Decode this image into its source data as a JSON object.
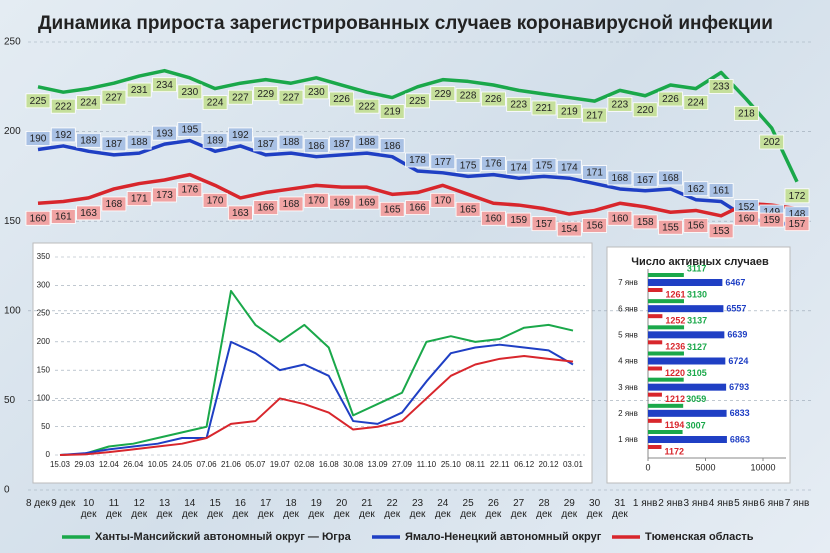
{
  "chart_data": [
    {
      "type": "line",
      "title": "Динамика прироста зарегистрированных случаев коронавирусной инфекции",
      "categories": [
        "8 дек",
        "9 дек",
        "10 дек",
        "11 дек",
        "12 дек",
        "13 дек",
        "14 дек",
        "15 дек",
        "16 дек",
        "17 дек",
        "18 дек",
        "19 дек",
        "20 дек",
        "21 дек",
        "22 дек",
        "23 дек",
        "24 дек",
        "25 дек",
        "26 дек",
        "27 дек",
        "28 дек",
        "29 дек",
        "30 дек",
        "31 дек",
        "1 янв",
        "2 янв",
        "3 янв",
        "4 янв",
        "5 янв",
        "6 янв",
        "7 янв"
      ],
      "series": [
        {
          "name": "Ханты-Мансийский автономный округ — Югра",
          "color": "#1aa84a",
          "label_color": "#c5df9b",
          "values": [
            225,
            222,
            224,
            227,
            231,
            234,
            230,
            224,
            227,
            229,
            227,
            230,
            226,
            222,
            219,
            225,
            229,
            228,
            226,
            223,
            221,
            219,
            217,
            223,
            220,
            226,
            224,
            233,
            218,
            202,
            172
          ]
        },
        {
          "name": "Ямало-Ненецкий автономный округ",
          "color": "#1f3fc4",
          "label_color": "#a9c1e4",
          "values": [
            190,
            192,
            189,
            187,
            188,
            193,
            195,
            189,
            192,
            187,
            188,
            186,
            187,
            188,
            186,
            178,
            177,
            175,
            176,
            174,
            175,
            174,
            171,
            168,
            167,
            168,
            162,
            161,
            152,
            149,
            148
          ]
        },
        {
          "name": "Тюменская область",
          "color": "#d8262c",
          "label_color": "#f0a3a3",
          "values": [
            160,
            161,
            163,
            168,
            171,
            173,
            176,
            170,
            163,
            166,
            168,
            170,
            169,
            169,
            165,
            166,
            170,
            165,
            160,
            159,
            157,
            154,
            156,
            160,
            158,
            155,
            156,
            153,
            160,
            159,
            157
          ]
        }
      ],
      "ylim": [
        0,
        250
      ],
      "yticks": [
        0,
        50,
        100,
        150,
        200,
        250
      ],
      "grid": true,
      "data_labels": true
    },
    {
      "type": "line",
      "categories": [
        "15.03",
        "29.03",
        "12.04",
        "26.04",
        "10.05",
        "24.05",
        "07.06",
        "21.06",
        "05.07",
        "19.07",
        "02.08",
        "16.08",
        "30.08",
        "13.09",
        "27.09",
        "11.10",
        "25.10",
        "08.11",
        "22.11",
        "06.12",
        "20.12",
        "03.01"
      ],
      "series": [
        {
          "color": "#1aa84a",
          "values": [
            0,
            2,
            15,
            20,
            30,
            40,
            50,
            290,
            230,
            200,
            230,
            190,
            70,
            90,
            110,
            200,
            210,
            200,
            205,
            225,
            230,
            220
          ]
        },
        {
          "color": "#1f3fc4",
          "values": [
            0,
            3,
            10,
            15,
            20,
            30,
            30,
            200,
            180,
            150,
            160,
            140,
            60,
            55,
            75,
            130,
            180,
            190,
            195,
            190,
            185,
            160
          ]
        },
        {
          "color": "#d8262c",
          "values": [
            0,
            1,
            5,
            10,
            15,
            20,
            30,
            55,
            60,
            100,
            90,
            75,
            45,
            50,
            60,
            100,
            140,
            160,
            170,
            175,
            170,
            165
          ]
        }
      ],
      "ylim": [
        0,
        350
      ],
      "yticks": [
        0,
        50,
        100,
        150,
        200,
        250,
        300,
        350
      ],
      "grid": true,
      "data_labels": false
    },
    {
      "type": "bar",
      "title": "Число активных случаев",
      "categories": [
        "1 янв",
        "2 янв",
        "3 янв",
        "4 янв",
        "5 янв",
        "6 янв",
        "7 янв"
      ],
      "series": [
        {
          "color": "#1aa84a",
          "values": [
            3007,
            3059,
            3105,
            3127,
            3137,
            3130,
            3117
          ]
        },
        {
          "color": "#1f3fc4",
          "values": [
            6863,
            6833,
            6793,
            6724,
            6639,
            6557,
            6467
          ]
        },
        {
          "color": "#d8262c",
          "values": [
            1172,
            1194,
            1212,
            1220,
            1236,
            1252,
            1261
          ]
        }
      ],
      "xlim": [
        0,
        12000
      ],
      "xticks": [
        0,
        5000,
        10000
      ]
    }
  ]
}
